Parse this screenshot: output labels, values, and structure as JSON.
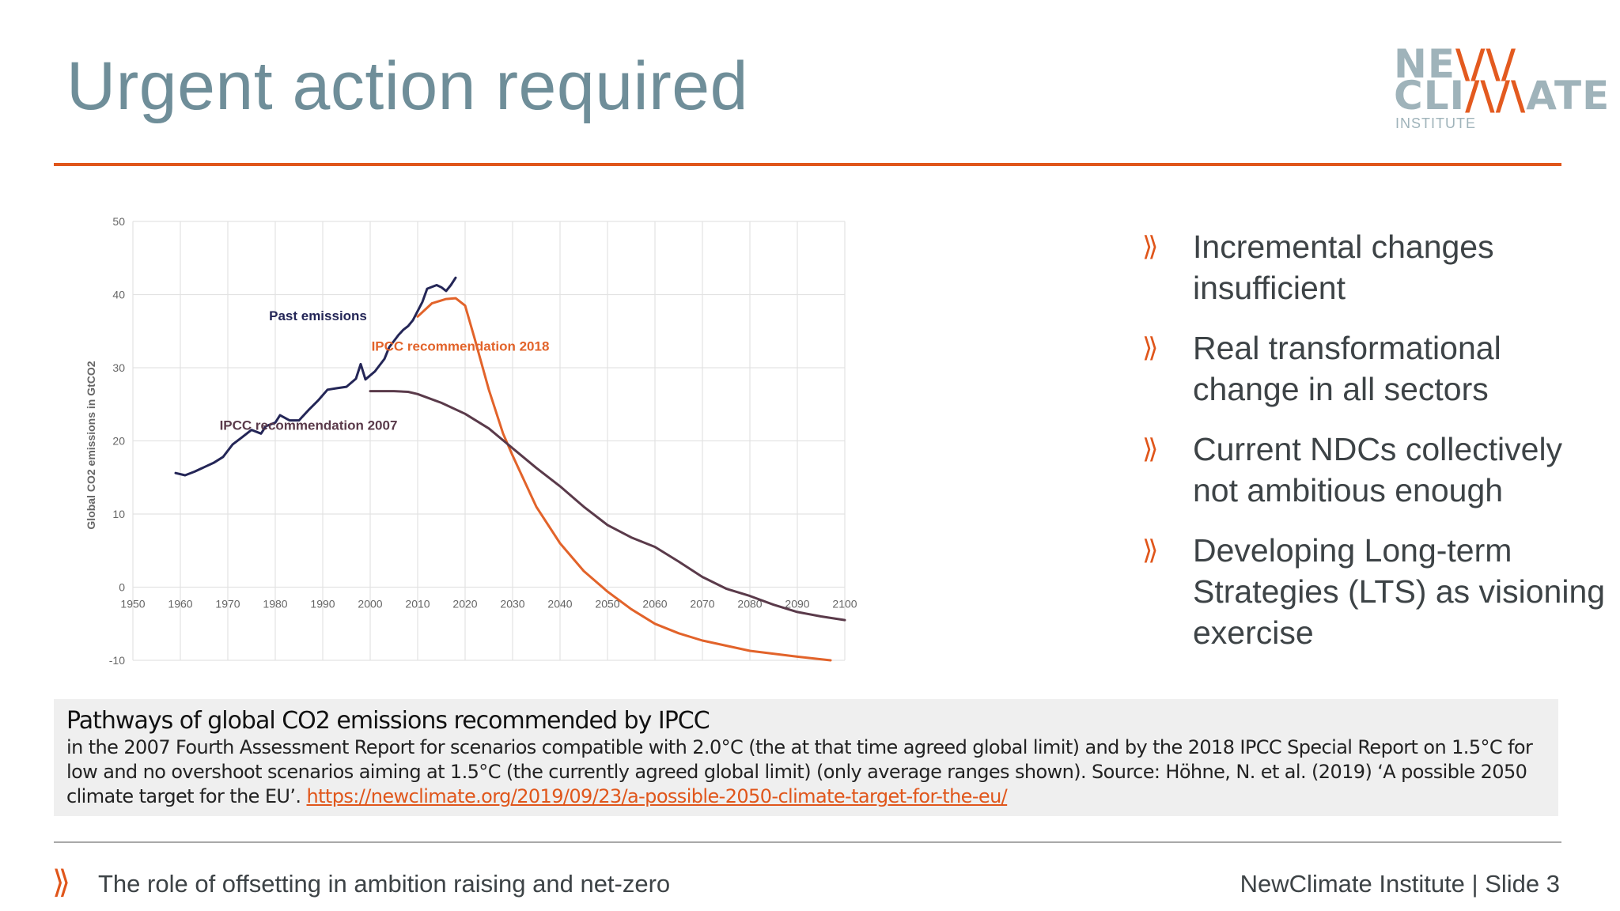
{
  "slide": {
    "title": "Urgent action required",
    "logo": {
      "line1_a": "NE",
      "line1_b": "\\/\\/",
      "line2_a": "CLI",
      "line2_b": "/\\/\\",
      "line2_c": "ATE",
      "line3": "INSTITUTE",
      "gray": "#9fb3ba",
      "orange": "#e35a1f"
    },
    "accent_color": "#e0561b",
    "title_color": "#6f8e99"
  },
  "bullets": [
    {
      "icon": "double-chevron-icon",
      "text": "Incremental changes insufficient"
    },
    {
      "icon": "double-chevron-icon",
      "text": "Real transformational change in all sectors"
    },
    {
      "icon": "double-chevron-icon",
      "text": "Current NDCs collectively not ambitious enough"
    },
    {
      "icon": "double-chevron-icon",
      "text": "Developing Long-term Strategies (LTS) as visioning exercise"
    }
  ],
  "caption": {
    "title": "Pathways of global CO2 emissions recommended by IPCC",
    "body": "in the 2007 Fourth Assessment Report for scenarios compatible with 2.0°C (the at that time agreed global limit) and by the 2018 IPCC Special Report on 1.5°C for low and no overshoot scenarios aiming at 1.5°C (the currently agreed global limit) (only average ranges shown). Source: Höhne, N. et al. (2019) ‘A possible 2050 climate target for the EU’. ",
    "link": "https://newclimate.org/2019/09/23/a-possible-2050-climate-target-for-the-eu/"
  },
  "footer": {
    "left": "The role of offsetting in ambition raising and net-zero",
    "right": "NewClimate Institute | Slide 3"
  },
  "chart_data": {
    "type": "line",
    "title": "",
    "xlabel": "",
    "ylabel": "Global CO2 emissions in GtCO2",
    "xlim": [
      1950,
      2100
    ],
    "ylim": [
      -10,
      50
    ],
    "xticks": [
      1950,
      1960,
      1970,
      1980,
      1990,
      2000,
      2010,
      2020,
      2030,
      2040,
      2050,
      2060,
      2070,
      2080,
      2090,
      2100
    ],
    "yticks": [
      -10,
      0,
      10,
      20,
      30,
      40,
      50
    ],
    "grid": true,
    "legend": "none",
    "series": [
      {
        "name": "Past emissions",
        "color": "#242657",
        "points": [
          [
            1959,
            15.6
          ],
          [
            1961,
            15.3
          ],
          [
            1963,
            15.8
          ],
          [
            1965,
            16.4
          ],
          [
            1967,
            17.0
          ],
          [
            1969,
            17.8
          ],
          [
            1971,
            19.5
          ],
          [
            1973,
            20.5
          ],
          [
            1975,
            21.5
          ],
          [
            1977,
            21.0
          ],
          [
            1978,
            22.0
          ],
          [
            1980,
            22.5
          ],
          [
            1981,
            23.5
          ],
          [
            1983,
            22.8
          ],
          [
            1985,
            22.8
          ],
          [
            1987,
            24.2
          ],
          [
            1989,
            25.5
          ],
          [
            1991,
            27.0
          ],
          [
            1993,
            27.2
          ],
          [
            1995,
            27.4
          ],
          [
            1997,
            28.5
          ],
          [
            1998,
            30.5
          ],
          [
            1999,
            28.4
          ],
          [
            2001,
            29.5
          ],
          [
            2003,
            31.2
          ],
          [
            2004,
            32.8
          ],
          [
            2006,
            34.5
          ],
          [
            2007,
            35.2
          ],
          [
            2008,
            35.7
          ],
          [
            2009,
            36.5
          ],
          [
            2011,
            39.0
          ],
          [
            2012,
            40.8
          ],
          [
            2014,
            41.3
          ],
          [
            2015,
            41.0
          ],
          [
            2016,
            40.5
          ],
          [
            2017,
            41.3
          ],
          [
            2018,
            42.3
          ]
        ],
        "label_pos": [
          1989,
          36.5
        ]
      },
      {
        "name": "IPCC recommendation 2018",
        "color": "#e2632a",
        "points": [
          [
            2010,
            37.0
          ],
          [
            2013,
            38.8
          ],
          [
            2016,
            39.4
          ],
          [
            2018,
            39.5
          ],
          [
            2020,
            38.5
          ],
          [
            2022,
            34.0
          ],
          [
            2025,
            27.0
          ],
          [
            2028,
            21.0
          ],
          [
            2030,
            18.0
          ],
          [
            2035,
            11.0
          ],
          [
            2040,
            6.0
          ],
          [
            2045,
            2.2
          ],
          [
            2050,
            -0.6
          ],
          [
            2055,
            -3.0
          ],
          [
            2060,
            -5.0
          ],
          [
            2065,
            -6.3
          ],
          [
            2070,
            -7.3
          ],
          [
            2080,
            -8.7
          ],
          [
            2090,
            -9.5
          ],
          [
            2097,
            -10.0
          ]
        ],
        "label_pos": [
          2019,
          32.3
        ]
      },
      {
        "name": "IPCC recommendation 2007",
        "color": "#5a3a4a",
        "points": [
          [
            2000,
            26.8
          ],
          [
            2005,
            26.8
          ],
          [
            2008,
            26.7
          ],
          [
            2010,
            26.4
          ],
          [
            2015,
            25.2
          ],
          [
            2020,
            23.7
          ],
          [
            2025,
            21.7
          ],
          [
            2030,
            19.0
          ],
          [
            2035,
            16.3
          ],
          [
            2040,
            13.8
          ],
          [
            2045,
            11.0
          ],
          [
            2050,
            8.5
          ],
          [
            2055,
            6.8
          ],
          [
            2060,
            5.5
          ],
          [
            2065,
            3.5
          ],
          [
            2070,
            1.4
          ],
          [
            2075,
            -0.2
          ],
          [
            2080,
            -1.2
          ],
          [
            2085,
            -2.4
          ],
          [
            2090,
            -3.4
          ],
          [
            2095,
            -4.0
          ],
          [
            2100,
            -4.5
          ]
        ],
        "label_pos": [
          1987,
          21.5
        ]
      }
    ]
  }
}
